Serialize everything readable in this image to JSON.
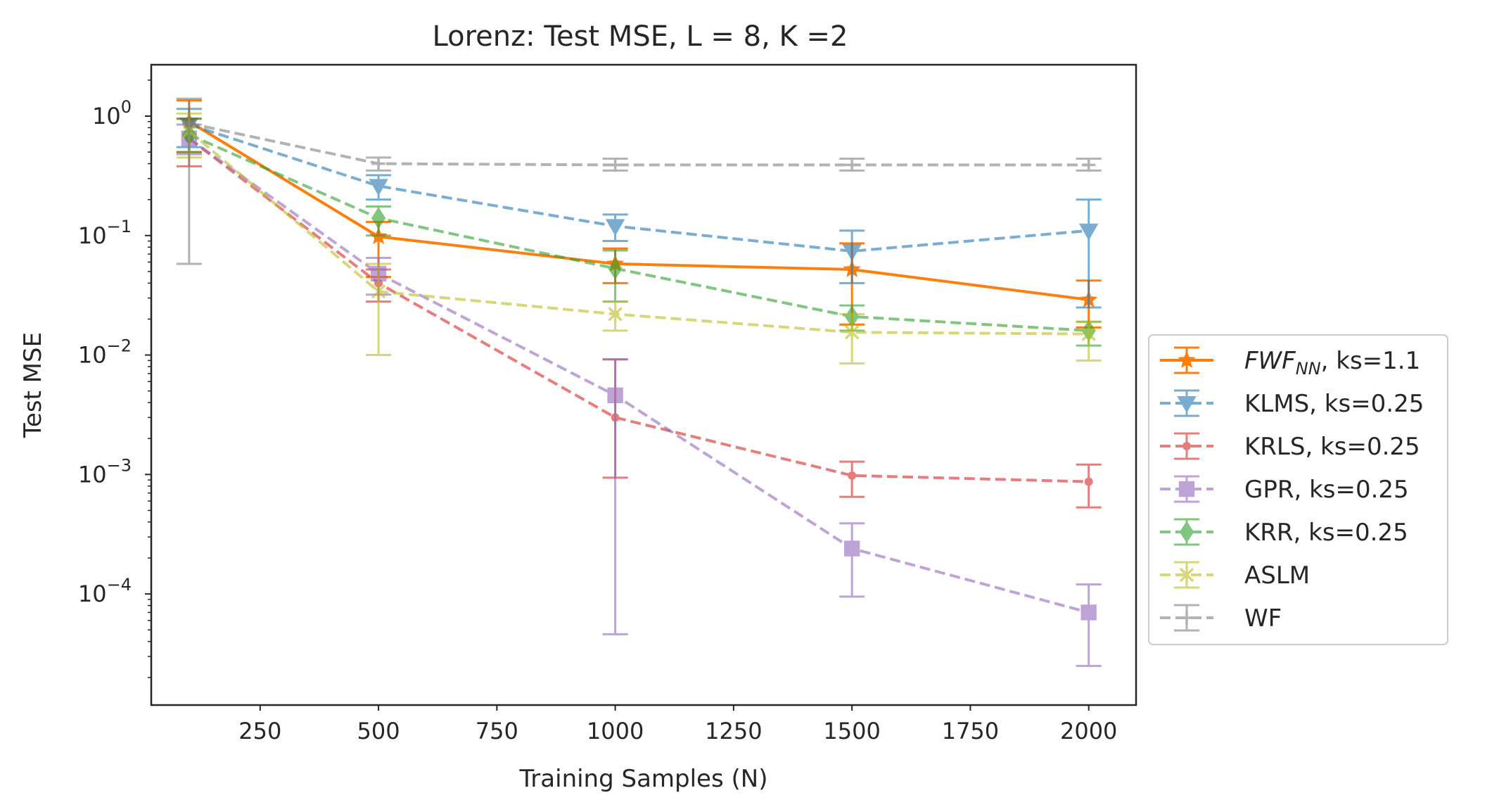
{
  "chart_data": {
    "type": "line",
    "title": "Lorenz: Test MSE, L = 8, K =2",
    "xlabel": "Training Samples (N)",
    "ylabel": "Test MSE",
    "yscale": "log",
    "xlim": [
      20,
      2100
    ],
    "ylim_log10": [
      -4.93,
      0.43
    ],
    "x_ticks": [
      250,
      500,
      750,
      1000,
      1250,
      1500,
      1750,
      2000
    ],
    "x_tick_labels": [
      "250",
      "500",
      "750",
      "1000",
      "1250",
      "1500",
      "1750",
      "2000"
    ],
    "y_ticks": [
      {
        "exp": 0,
        "base": "10",
        "sup": "0"
      },
      {
        "exp": -1,
        "base": "10",
        "sup": "−1"
      },
      {
        "exp": -2,
        "base": "10",
        "sup": "−2"
      },
      {
        "exp": -3,
        "base": "10",
        "sup": "−3"
      },
      {
        "exp": -4,
        "base": "10",
        "sup": "−4"
      }
    ],
    "grid": false,
    "legend_position": "center-right outside",
    "series": [
      {
        "name": "FWF_NN, ks=1.1",
        "label_main": "FWF",
        "label_sub": "NN",
        "label_rest": ", ks=1.1",
        "color": "#ff7f0e",
        "linestyle": "solid",
        "marker": "star",
        "alpha": 1.0,
        "x": [
          100,
          500,
          1000,
          1500,
          2000
        ],
        "y": [
          0.9,
          0.098,
          0.058,
          0.052,
          0.029
        ],
        "err_low": [
          0.5,
          0.045,
          0.04,
          0.018,
          0.017
        ],
        "err_high": [
          1.35,
          0.13,
          0.078,
          0.086,
          0.042
        ]
      },
      {
        "name": "KLMS, ks=0.25",
        "label_main": "KLMS, ks=0.25",
        "color": "#1f77b4",
        "linestyle": "dashed",
        "marker": "triangle-down",
        "alpha": 0.6,
        "x": [
          100,
          500,
          1000,
          1500,
          2000
        ],
        "y": [
          0.85,
          0.26,
          0.12,
          0.074,
          0.11
        ],
        "err_low": [
          0.55,
          0.2,
          0.09,
          0.04,
          0.025
        ],
        "err_high": [
          1.15,
          0.32,
          0.15,
          0.11,
          0.2
        ]
      },
      {
        "name": "KRLS, ks=0.25",
        "label_main": "KRLS, ks=0.25",
        "color": "#d62728",
        "linestyle": "dashed",
        "marker": "dot",
        "alpha": 0.6,
        "x": [
          100,
          500,
          1000,
          1500,
          2000
        ],
        "y": [
          0.65,
          0.04,
          0.003,
          0.00098,
          0.00087
        ],
        "err_low": [
          0.38,
          0.028,
          0.00094,
          0.00065,
          0.00053
        ],
        "err_high": [
          0.95,
          0.052,
          0.0092,
          0.00128,
          0.00121
        ]
      },
      {
        "name": "GPR, ks=0.25",
        "label_main": "GPR, ks=0.25",
        "color": "#9467bd",
        "linestyle": "dashed",
        "marker": "square",
        "alpha": 0.6,
        "x": [
          100,
          500,
          1000,
          1500,
          2000
        ],
        "y": [
          0.65,
          0.048,
          0.0046,
          0.00024,
          7e-05
        ],
        "err_low": [
          0.48,
          0.032,
          4.6e-05,
          9.5e-05,
          2.5e-05
        ],
        "err_high": [
          0.85,
          0.065,
          0.0092,
          0.00039,
          0.00012
        ]
      },
      {
        "name": "KRR, ks=0.25",
        "label_main": "KRR, ks=0.25",
        "color": "#2ca02c",
        "linestyle": "dashed",
        "marker": "diamond",
        "alpha": 0.6,
        "x": [
          100,
          500,
          1000,
          1500,
          2000
        ],
        "y": [
          0.7,
          0.14,
          0.053,
          0.021,
          0.016
        ],
        "err_low": [
          0.5,
          0.1,
          0.028,
          0.016,
          0.012
        ],
        "err_high": [
          0.95,
          0.175,
          0.075,
          0.026,
          0.019
        ]
      },
      {
        "name": "ASLM",
        "label_main": "ASLM",
        "color": "#bcbd22",
        "linestyle": "dashed",
        "marker": "x-cross",
        "alpha": 0.6,
        "x": [
          100,
          500,
          1000,
          1500,
          2000
        ],
        "y": [
          0.75,
          0.034,
          0.022,
          0.0155,
          0.015
        ],
        "err_low": [
          0.45,
          0.01,
          0.016,
          0.0085,
          0.009
        ],
        "err_high": [
          1.05,
          0.058,
          0.028,
          0.022,
          0.019
        ]
      },
      {
        "name": "WF",
        "label_main": "WF",
        "color": "#7f7f7f",
        "linestyle": "dashed",
        "marker": "plus",
        "alpha": 0.6,
        "x": [
          100,
          500,
          1000,
          1500,
          2000
        ],
        "y": [
          0.87,
          0.4,
          0.39,
          0.39,
          0.39
        ],
        "err_low": [
          0.058,
          0.35,
          0.35,
          0.35,
          0.35
        ],
        "err_high": [
          1.4,
          0.45,
          0.44,
          0.44,
          0.44
        ]
      }
    ]
  }
}
